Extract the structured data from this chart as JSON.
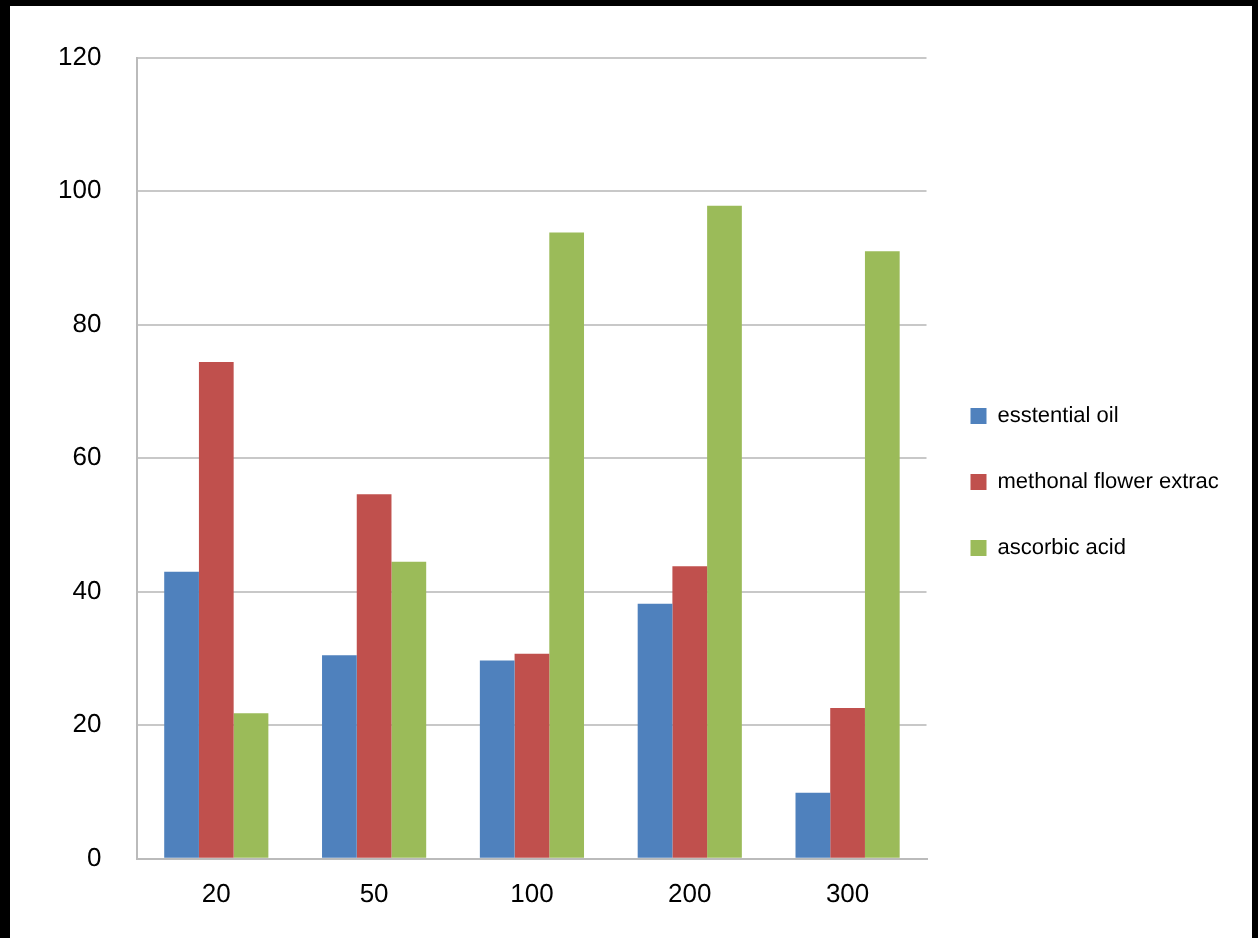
{
  "chart_data": {
    "type": "bar",
    "categories": [
      "20",
      "50",
      "100",
      "200",
      "300"
    ],
    "series": [
      {
        "name": "esstential oil",
        "color": "#4f81bd",
        "values": [
          43,
          30.5,
          29.7,
          38.2,
          9.9
        ]
      },
      {
        "name": "methonal flower extrac",
        "color": "#c0504d",
        "values": [
          74.4,
          54.6,
          30.7,
          43.8,
          22.6
        ]
      },
      {
        "name": "ascorbic acid",
        "color": "#9bbb59",
        "values": [
          21.8,
          44.5,
          93.8,
          97.8,
          91
        ]
      }
    ],
    "ylim": [
      0,
      120
    ],
    "yticks": [
      0,
      20,
      40,
      60,
      80,
      100,
      120
    ],
    "grid": "y",
    "legend": "right"
  }
}
